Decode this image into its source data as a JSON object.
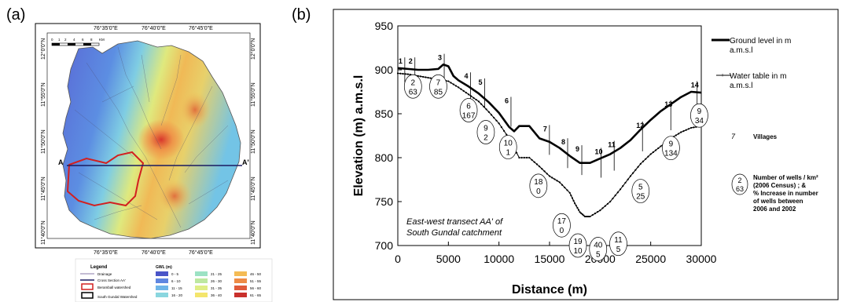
{
  "panels": {
    "a_label": "(a)",
    "b_label": "(b)"
  },
  "map": {
    "top_longitudes": [
      "76°35'0\"E",
      "76°40'0\"E",
      "76°45'0\"E"
    ],
    "bottom_longitudes": [
      "76°35'0\"E",
      "76°40'0\"E",
      "76°45'0\"E"
    ],
    "left_latitudes": [
      "12°0'0\"N",
      "11°55'0\"N",
      "11°50'0\"N",
      "11°45'0\"N",
      "11°40'0\"N"
    ],
    "right_latitudes": [
      "12°0'0\"N",
      "11°55'0\"N",
      "11°50'0\"N",
      "11°45'0\"N",
      "11°40'0\"N"
    ],
    "scale_labels": [
      "0",
      "1",
      "2",
      "4",
      "6",
      "8",
      "KM"
    ],
    "transect_labels": [
      "A",
      "A'"
    ],
    "legend": {
      "title": "Legend",
      "items": [
        "Drainage",
        "Cross Section AA'",
        "Beramball watershed",
        "South Gundal Watershed"
      ],
      "gwl_title": "GWL (m)",
      "gwl_classes": [
        "0 - 5",
        "6 - 10",
        "11 - 15",
        "16 - 20",
        "21 - 25",
        "26 - 30",
        "31 - 35",
        "36 - 40",
        "46 - 50",
        "51 - 55",
        "56 - 60",
        "61 - 65"
      ],
      "gwl_colors": [
        "#4a55c8",
        "#5f86e0",
        "#6fb5e8",
        "#8ad6df",
        "#9ce2c4",
        "#bde8a0",
        "#dfee86",
        "#f4e56c",
        "#f4bb55",
        "#ee8b46",
        "#e05a3a",
        "#c9302c"
      ]
    }
  },
  "chart_data": {
    "type": "line",
    "ylabel": "Elevation (m) a.m.s.l",
    "xlabel": "Distance (m)",
    "xlim": [
      0,
      30000
    ],
    "ylim": [
      700,
      950
    ],
    "xticks": [
      0,
      5000,
      10000,
      15000,
      20000,
      25000,
      30000
    ],
    "yticks": [
      700,
      750,
      800,
      850,
      900,
      950
    ],
    "annotation_text": [
      "East-west transect AA' of",
      "South Gundal catchment"
    ],
    "series": [
      {
        "name": "Ground level in m a.m.s.l",
        "x": [
          0,
          1000,
          2000,
          3000,
          4000,
          4500,
          5000,
          5500,
          6000,
          7000,
          8000,
          9000,
          10000,
          11000,
          11500,
          12000,
          13000,
          14000,
          15000,
          16000,
          17000,
          18000,
          19000,
          20000,
          21000,
          22000,
          23000,
          24000,
          25000,
          26000,
          27000,
          28000,
          29000,
          30000
        ],
        "y": [
          902,
          901,
          900,
          900,
          901,
          906,
          904,
          893,
          888,
          881,
          873,
          863,
          851,
          835,
          830,
          836,
          836,
          822,
          818,
          811,
          802,
          794,
          794,
          799,
          804,
          811,
          820,
          832,
          843,
          853,
          861,
          869,
          875,
          874
        ]
      },
      {
        "name": "Water table in m a.m.s.l",
        "x": [
          0,
          1000,
          2000,
          3000,
          4000,
          5000,
          6000,
          7000,
          8000,
          9000,
          10000,
          11000,
          12000,
          13000,
          14000,
          15000,
          16000,
          17000,
          17500,
          18000,
          18500,
          19000,
          20000,
          21000,
          22000,
          23000,
          24000,
          25000,
          26000,
          27000,
          28000,
          29000,
          30000
        ],
        "y": [
          896,
          895,
          893,
          891,
          889,
          887,
          880,
          872,
          864,
          852,
          839,
          822,
          800,
          800,
          790,
          779,
          772,
          760,
          748,
          738,
          733,
          733,
          740,
          750,
          764,
          779,
          793,
          804,
          813,
          822,
          829,
          834,
          836
        ]
      }
    ],
    "village_labels": [
      {
        "text": "1",
        "x": 300,
        "y": 907
      },
      {
        "text": "2",
        "x": 1300,
        "y": 907
      },
      {
        "text": "3",
        "x": 4200,
        "y": 911
      },
      {
        "text": "4",
        "x": 6800,
        "y": 890
      },
      {
        "text": "5",
        "x": 8200,
        "y": 883
      },
      {
        "text": "6",
        "x": 10800,
        "y": 862
      },
      {
        "text": "7",
        "x": 14600,
        "y": 830
      },
      {
        "text": "8",
        "x": 16400,
        "y": 815
      },
      {
        "text": "9",
        "x": 17800,
        "y": 807
      },
      {
        "text": "10",
        "x": 19700,
        "y": 804
      },
      {
        "text": "11",
        "x": 21000,
        "y": 812
      },
      {
        "text": "12",
        "x": 23800,
        "y": 834
      },
      {
        "text": "13",
        "x": 26600,
        "y": 858
      },
      {
        "text": "14",
        "x": 29200,
        "y": 880
      }
    ],
    "well_labels": [
      {
        "top": "2",
        "bottom": "63",
        "x": 1500,
        "y": 881
      },
      {
        "top": "7",
        "bottom": "85",
        "x": 4000,
        "y": 881
      },
      {
        "top": "6",
        "bottom": "167",
        "x": 7000,
        "y": 854
      },
      {
        "top": "9",
        "bottom": "2",
        "x": 8700,
        "y": 829
      },
      {
        "top": "10",
        "bottom": "1",
        "x": 10900,
        "y": 812
      },
      {
        "top": "18",
        "bottom": "0",
        "x": 13900,
        "y": 768
      },
      {
        "top": "17",
        "bottom": "0",
        "x": 16200,
        "y": 723
      },
      {
        "top": "19",
        "bottom": "10",
        "x": 17800,
        "y": 700
      },
      {
        "top": "40",
        "bottom": "5",
        "x": 19800,
        "y": 696
      },
      {
        "top": "11",
        "bottom": "5",
        "x": 21800,
        "y": 702
      },
      {
        "top": "5",
        "bottom": "25",
        "x": 24000,
        "y": 762
      },
      {
        "top": "9",
        "bottom": "134",
        "x": 27000,
        "y": 811
      },
      {
        "top": "9",
        "bottom": "34",
        "x": 29800,
        "y": 848
      }
    ],
    "legend": {
      "ground_line1": "Ground level in m",
      "ground_line2": "a.m.s.l",
      "water_line1": "Water table in m",
      "water_line2": "a.m.s.l",
      "village_sample": "7",
      "village_label": "Villages",
      "well_sample_top": "2",
      "well_sample_bottom": "63",
      "well_text": [
        "Number of wells / km²",
        "(2006 Census) ; &",
        "% Increase in number",
        "of wells between",
        "2006 and 2002"
      ]
    }
  }
}
